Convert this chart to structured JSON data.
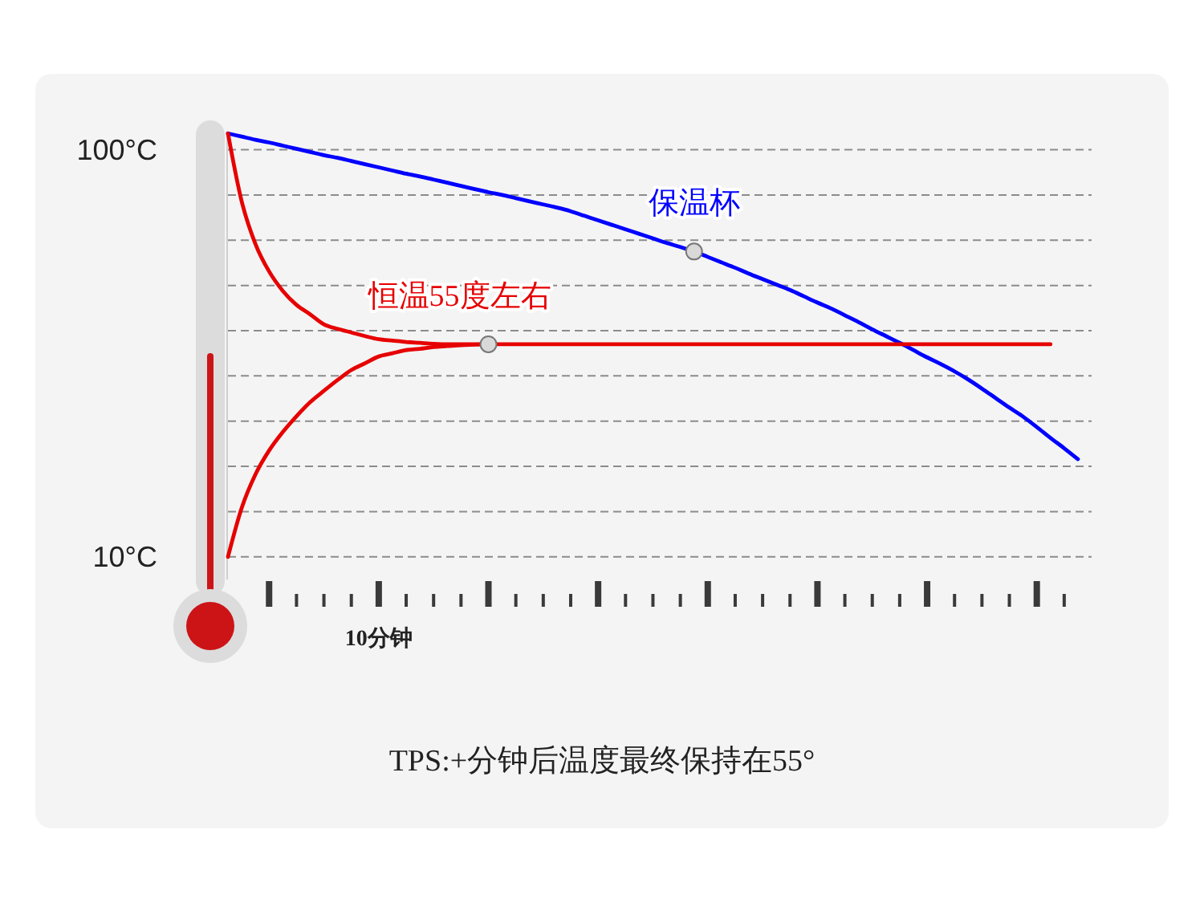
{
  "chart_data": {
    "type": "line",
    "categories": [
      null,
      null,
      null,
      null,
      null,
      null,
      null,
      null,
      null,
      null,
      null,
      "10分钟",
      null,
      null,
      null,
      null,
      null,
      null,
      null,
      null,
      null,
      null,
      null,
      null,
      null,
      null,
      null,
      null,
      null,
      null,
      null,
      null,
      null,
      null,
      null,
      null,
      null,
      null,
      null,
      null,
      null,
      null,
      null,
      null,
      null,
      null,
      null,
      null,
      null,
      null,
      null,
      null,
      null,
      null,
      null,
      null,
      null,
      null,
      null,
      null,
      null,
      null,
      null,
      null
    ],
    "ylim": [
      5,
      104
    ],
    "yticks": [
      {
        "value": 100,
        "label": "100°C"
      },
      {
        "value": 90,
        "label": null
      },
      {
        "value": 80,
        "label": null
      },
      {
        "value": 70,
        "label": null
      },
      {
        "value": 60,
        "label": null
      },
      {
        "value": 50,
        "label": null
      },
      {
        "value": 40,
        "label": null
      },
      {
        "value": 30,
        "label": null
      },
      {
        "value": 20,
        "label": null
      },
      {
        "value": 10,
        "label": "10°C"
      }
    ],
    "grid": "y",
    "series": [
      {
        "name": "保温杯",
        "color": "#0000ff",
        "values": [
          103.6,
          102.9,
          102.2,
          101.6,
          100.9,
          100.2,
          99.5,
          98.8,
          98.2,
          97.5,
          96.8,
          96.1,
          95.4,
          94.7,
          94.1,
          93.4,
          92.7,
          92,
          91.3,
          90.6,
          90,
          89.3,
          88.6,
          87.9,
          87.2,
          86.4,
          85.4,
          84.4,
          83.4,
          82.4,
          81.4,
          80.4,
          79.4,
          78.5,
          77.5,
          76.3,
          75.1,
          73.9,
          72.6,
          71.4,
          70.2,
          69,
          67.6,
          66.2,
          64.9,
          63.4,
          61.9,
          60.3,
          58.8,
          57.3,
          55.7,
          54.1,
          52.6,
          51,
          49.2,
          47.2,
          45.1,
          43,
          41,
          38.7,
          36.3,
          34,
          31.6,
          null
        ]
      },
      {
        "name": "恒温55度左右",
        "color": "#e60000",
        "values": [
          103.6,
          88.6,
          79.2,
          73.1,
          68.8,
          65.7,
          63.6,
          61.4,
          60.4,
          59.6,
          58.8,
          58.1,
          57.8,
          57.5,
          57.3,
          57.1,
          57,
          57,
          57,
          57,
          57,
          57,
          57,
          57,
          57,
          57,
          57,
          57,
          57,
          57,
          57,
          57,
          57,
          57,
          57,
          57,
          57,
          57,
          57,
          57,
          57,
          57,
          57,
          57,
          57,
          57,
          57,
          57,
          57,
          57,
          57,
          57,
          57,
          57,
          57,
          57,
          57,
          57,
          57,
          57,
          57,
          null,
          null,
          null
        ]
      },
      {
        "color": "#e60000",
        "values": [
          10,
          20.8,
          28.2,
          33.5,
          37.6,
          41.1,
          44.2,
          46.7,
          49.1,
          51.3,
          52.8,
          54.3,
          55,
          55.7,
          56,
          56.4,
          56.6,
          56.8,
          56.9,
          57,
          null,
          null,
          null,
          null,
          null,
          null,
          null,
          null,
          null,
          null,
          null,
          null,
          null,
          null,
          null,
          null,
          null,
          null,
          null,
          null,
          null,
          null,
          null,
          null,
          null,
          null,
          null,
          null,
          null,
          null,
          null,
          null,
          null,
          null,
          null,
          null,
          null,
          null,
          null,
          null,
          null,
          null,
          null,
          null
        ]
      },
      {
        "type": "scatter",
        "color": "#d9d9d9",
        "marker": "circle",
        "values": [
          null,
          null,
          null,
          null,
          null,
          null,
          null,
          null,
          null,
          null,
          null,
          null,
          null,
          null,
          null,
          null,
          null,
          null,
          null,
          57,
          null,
          null,
          null,
          null,
          null,
          null,
          null,
          null,
          null,
          null,
          null,
          null,
          null,
          null,
          77.5,
          null,
          null,
          null,
          null,
          null,
          null,
          null,
          null,
          null,
          null,
          null,
          null,
          null,
          null,
          null,
          null,
          null,
          null,
          null,
          null,
          null,
          null,
          null,
          null,
          null,
          null,
          null,
          null,
          null
        ]
      }
    ],
    "annotations": [
      "TPS:+分钟后温度最终保持在55°"
    ]
  }
}
